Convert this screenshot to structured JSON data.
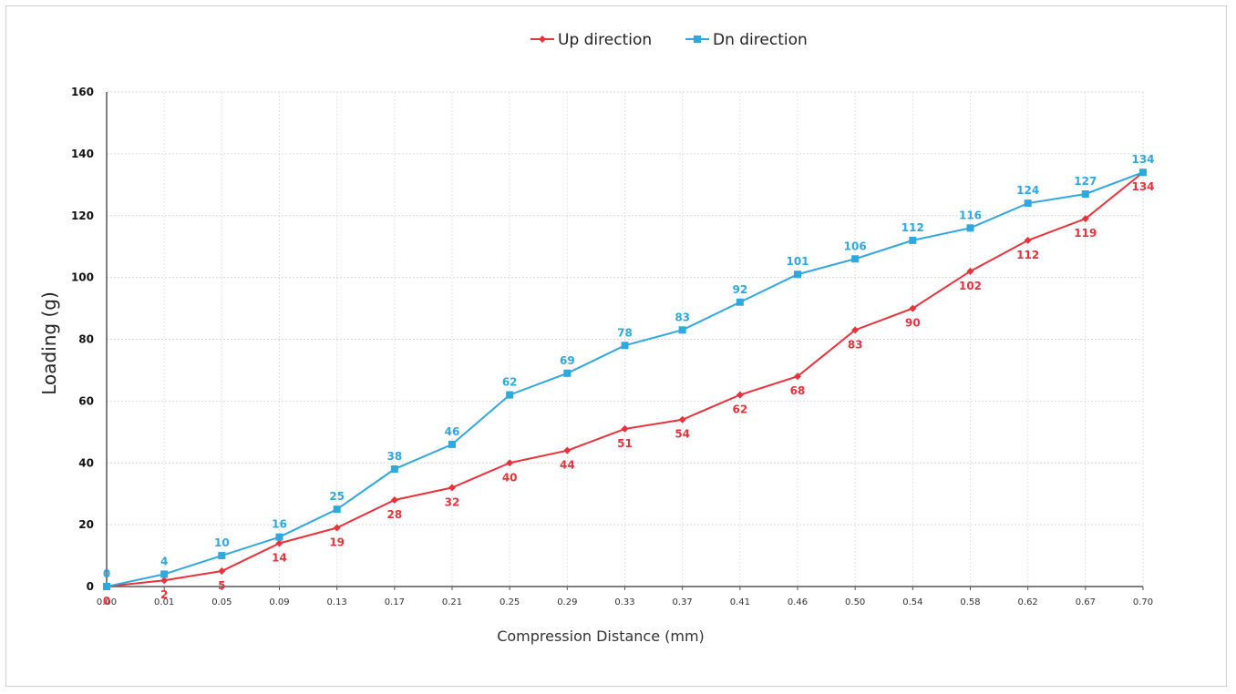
{
  "chart_data": {
    "type": "line",
    "title": "",
    "xlabel": "Compression Distance (mm)",
    "ylabel": "Loading (g)",
    "ylim": [
      0,
      160
    ],
    "yticks": [
      0,
      20,
      40,
      60,
      80,
      100,
      120,
      140,
      160
    ],
    "grid": true,
    "legend_position": "top-center",
    "categories": [
      "0.00",
      "0.01",
      "0.05",
      "0.09",
      "0.13",
      "0.17",
      "0.21",
      "0.25",
      "0.29",
      "0.33",
      "0.37",
      "0.41",
      "0.46",
      "0.50",
      "0.54",
      "0.58",
      "0.62",
      "0.67",
      "0.70"
    ],
    "series": [
      {
        "name": "Up direction",
        "color": "#e8323c",
        "marker": "diamond",
        "values": [
          0,
          2,
          5,
          14,
          19,
          28,
          32,
          40,
          44,
          51,
          54,
          62,
          68,
          83,
          90,
          102,
          112,
          119,
          134
        ]
      },
      {
        "name": "Dn direction",
        "color": "#2fa8e0",
        "marker": "square",
        "values": [
          0,
          4,
          10,
          16,
          25,
          38,
          46,
          62,
          69,
          78,
          83,
          92,
          101,
          106,
          112,
          116,
          124,
          127,
          134
        ]
      }
    ]
  }
}
